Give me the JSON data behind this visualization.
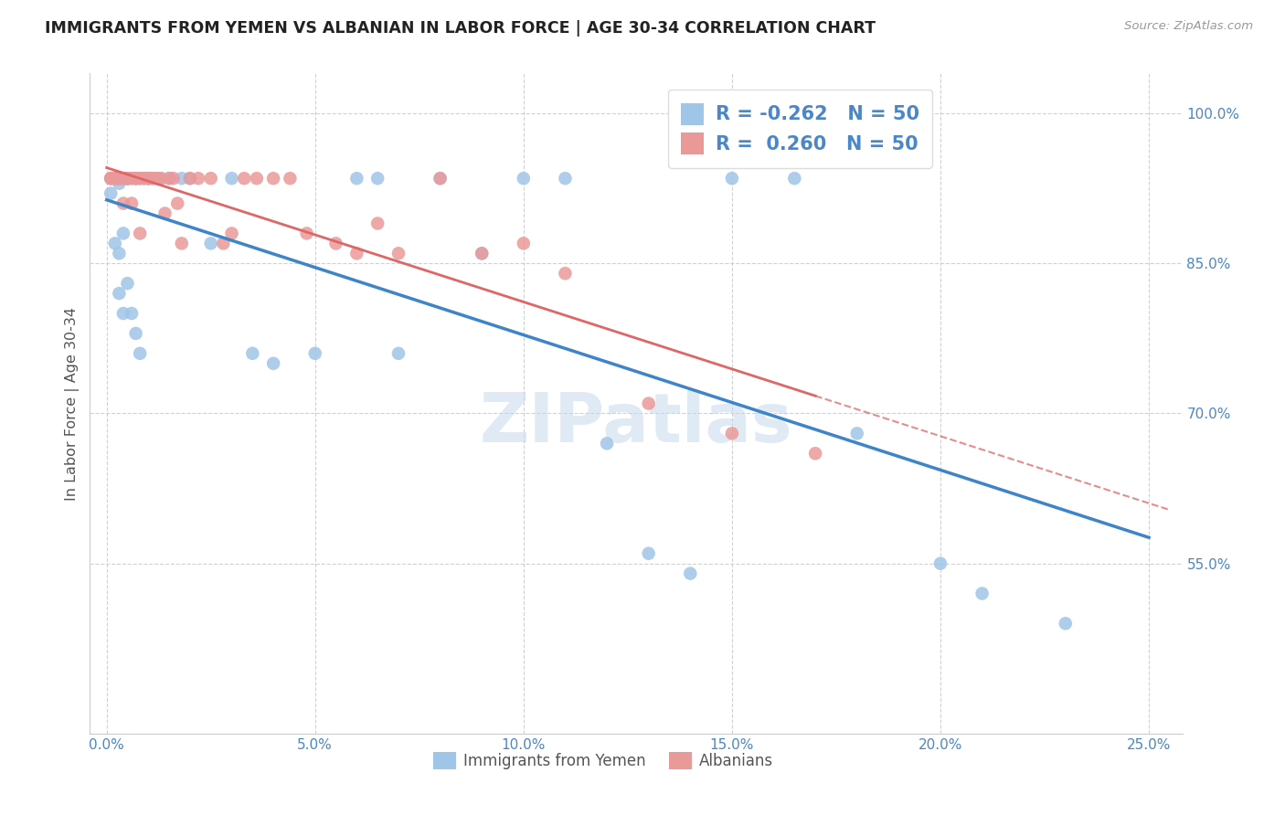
{
  "title": "IMMIGRANTS FROM YEMEN VS ALBANIAN IN LABOR FORCE | AGE 30-34 CORRELATION CHART",
  "source": "Source: ZipAtlas.com",
  "ylabel": "In Labor Force | Age 30-34",
  "blue_color": "#9fc5e8",
  "pink_color": "#ea9999",
  "blue_line_color": "#3d85c8",
  "pink_line_color": "#e06666",
  "tick_color": "#4a86c8",
  "watermark": "ZIPatlas",
  "legend_blue_r": "-0.262",
  "legend_blue_n": "50",
  "legend_pink_r": "0.260",
  "legend_pink_n": "50",
  "yemen_x": [
    0.001,
    0.001,
    0.002,
    0.002,
    0.002,
    0.003,
    0.003,
    0.003,
    0.003,
    0.004,
    0.004,
    0.004,
    0.005,
    0.005,
    0.005,
    0.006,
    0.006,
    0.007,
    0.007,
    0.008,
    0.008,
    0.009,
    0.01,
    0.011,
    0.012,
    0.013,
    0.015,
    0.018,
    0.02,
    0.025,
    0.03,
    0.035,
    0.04,
    0.05,
    0.06,
    0.065,
    0.07,
    0.08,
    0.09,
    0.1,
    0.11,
    0.12,
    0.13,
    0.14,
    0.15,
    0.165,
    0.18,
    0.2,
    0.21,
    0.23
  ],
  "yemen_y": [
    0.935,
    0.92,
    0.935,
    0.935,
    0.87,
    0.935,
    0.93,
    0.86,
    0.82,
    0.935,
    0.88,
    0.8,
    0.935,
    0.935,
    0.83,
    0.935,
    0.8,
    0.935,
    0.78,
    0.935,
    0.76,
    0.935,
    0.935,
    0.935,
    0.935,
    0.935,
    0.935,
    0.935,
    0.935,
    0.87,
    0.935,
    0.76,
    0.75,
    0.76,
    0.935,
    0.935,
    0.76,
    0.935,
    0.86,
    0.935,
    0.935,
    0.67,
    0.56,
    0.54,
    0.935,
    0.935,
    0.68,
    0.55,
    0.52,
    0.49
  ],
  "albanian_x": [
    0.001,
    0.001,
    0.002,
    0.002,
    0.003,
    0.003,
    0.003,
    0.004,
    0.004,
    0.005,
    0.005,
    0.005,
    0.006,
    0.006,
    0.007,
    0.007,
    0.008,
    0.008,
    0.009,
    0.01,
    0.01,
    0.011,
    0.012,
    0.013,
    0.014,
    0.015,
    0.016,
    0.017,
    0.018,
    0.02,
    0.022,
    0.025,
    0.028,
    0.03,
    0.033,
    0.036,
    0.04,
    0.044,
    0.048,
    0.055,
    0.06,
    0.065,
    0.07,
    0.08,
    0.09,
    0.1,
    0.11,
    0.13,
    0.15,
    0.17
  ],
  "albanian_y": [
    0.935,
    0.935,
    0.935,
    0.935,
    0.935,
    0.935,
    0.935,
    0.935,
    0.91,
    0.935,
    0.935,
    0.935,
    0.935,
    0.91,
    0.935,
    0.935,
    0.935,
    0.88,
    0.935,
    0.935,
    0.935,
    0.935,
    0.935,
    0.935,
    0.9,
    0.935,
    0.935,
    0.91,
    0.87,
    0.935,
    0.935,
    0.935,
    0.87,
    0.88,
    0.935,
    0.935,
    0.935,
    0.935,
    0.88,
    0.87,
    0.86,
    0.89,
    0.86,
    0.935,
    0.86,
    0.87,
    0.84,
    0.71,
    0.68,
    0.66
  ],
  "xlim": [
    -0.004,
    0.258
  ],
  "ylim": [
    0.38,
    1.04
  ],
  "yticks": [
    0.55,
    0.7,
    0.85,
    1.0
  ],
  "ytick_labels": [
    "55.0%",
    "70.0%",
    "85.0%",
    "100.0%"
  ],
  "xticks": [
    0.0,
    0.05,
    0.1,
    0.15,
    0.2,
    0.25
  ],
  "xtick_labels": [
    "0.0%",
    "5.0%",
    "10.0%",
    "15.0%",
    "20.0%",
    "25.0%"
  ]
}
